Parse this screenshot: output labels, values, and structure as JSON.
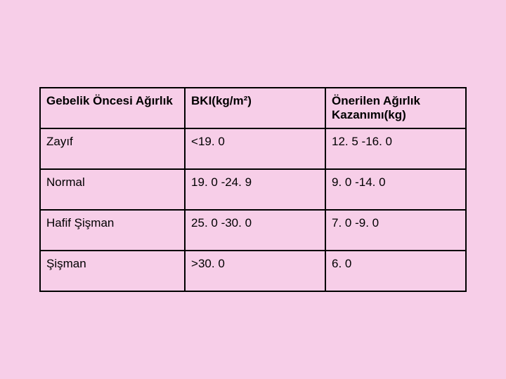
{
  "table": {
    "background_color": "#f7cee8",
    "border_color": "#000000",
    "border_width": 2,
    "font_family": "Arial",
    "header_fontsize": 17,
    "cell_fontsize": 17,
    "text_color": "#000000",
    "columns": [
      {
        "label": "Gebelik Öncesi Ağırlık",
        "width_pct": 34
      },
      {
        "label": "BKI(kg/m²)",
        "width_pct": 33
      },
      {
        "label": "Önerilen Ağırlık Kazanımı(kg)",
        "width_pct": 33
      }
    ],
    "rows": [
      {
        "c0": "Zayıf",
        "c1": "<19. 0",
        "c2": "12. 5 -16. 0"
      },
      {
        "c0": "Normal",
        "c1": "19. 0 -24. 9",
        "c2": "9. 0 -14. 0"
      },
      {
        "c0": "Hafif Şişman",
        "c1": "25. 0 -30. 0",
        "c2": "7. 0 -9. 0"
      },
      {
        "c0": "Şişman",
        "c1": ">30. 0",
        "c2": "6. 0"
      }
    ]
  }
}
